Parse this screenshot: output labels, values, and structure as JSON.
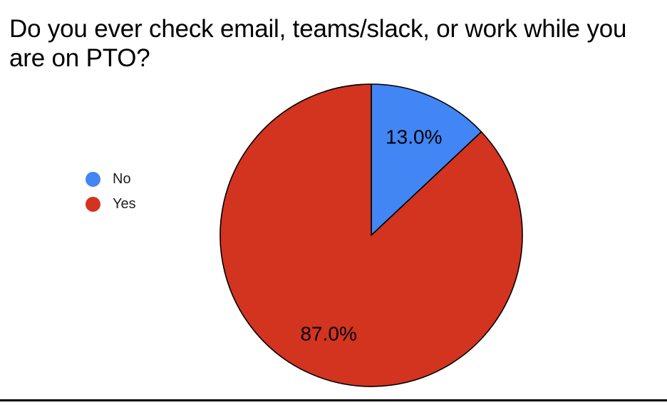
{
  "title": {
    "text": "Do you ever check email, teams/slack, or work while you are on PTO?"
  },
  "legend": {
    "position": "left",
    "items": [
      {
        "label": "No",
        "color": "#4285F4"
      },
      {
        "label": "Yes",
        "color": "#D23420"
      }
    ]
  },
  "chart_data": {
    "type": "pie",
    "title": "Do you ever check email, teams/slack, or work while you are on PTO?",
    "categories": [
      "No",
      "Yes"
    ],
    "values": [
      13.0,
      87.0
    ],
    "slice_labels": [
      "13.0%",
      "87.0%"
    ],
    "colors": [
      "#4285F4",
      "#D23420"
    ],
    "stroke_color": "#000000",
    "start_angle_deg": 0,
    "direction": "clockwise",
    "legend_position": "left",
    "label_color": "#000000"
  },
  "footer": {
    "rule_color": "#000000"
  }
}
